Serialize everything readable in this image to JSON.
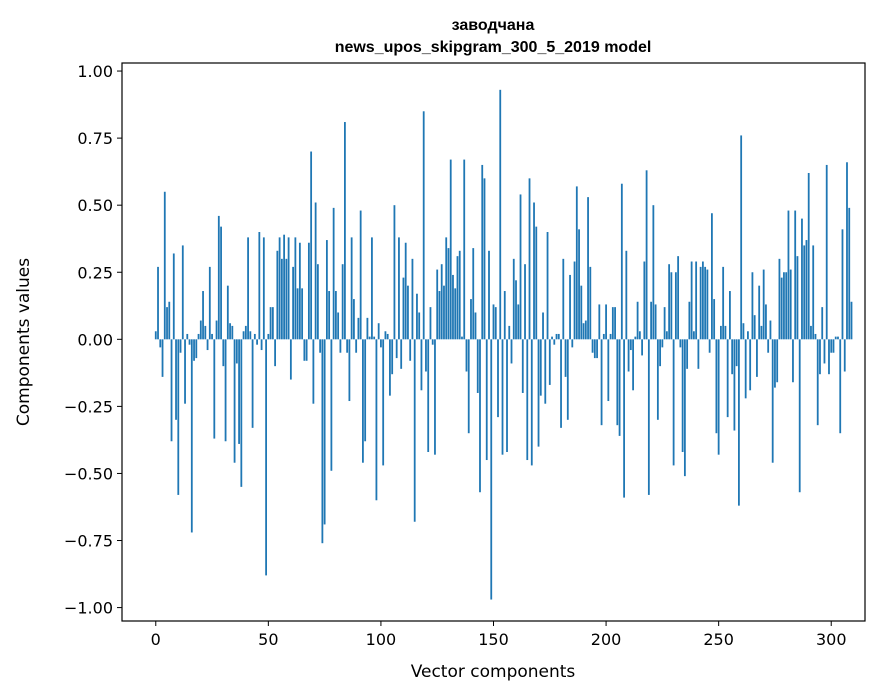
{
  "chart_data": {
    "type": "bar",
    "title_lines": [
      "заводчана",
      "news_upos_skipgram_300_5_2019 model"
    ],
    "xlabel": "Vector components",
    "ylabel": "Components values",
    "xlim": [
      -15,
      315
    ],
    "ylim": [
      -1.05,
      1.03
    ],
    "xticks": [
      0,
      50,
      100,
      150,
      200,
      250,
      300
    ],
    "yticks": [
      1.0,
      0.75,
      0.5,
      0.25,
      0.0,
      -0.25,
      -0.5,
      -0.75,
      -1.0
    ],
    "ytick_labels": [
      "1.00",
      "0.75",
      "0.50",
      "0.25",
      "0.00",
      "−0.25",
      "−0.50",
      "−0.75",
      "−1.00"
    ],
    "bar_color": "#1f77b4",
    "grid": false,
    "values": [
      0.03,
      0.27,
      -0.03,
      -0.14,
      0.55,
      0.12,
      0.14,
      -0.38,
      0.32,
      -0.3,
      -0.58,
      -0.05,
      0.35,
      -0.24,
      0.02,
      -0.02,
      -0.72,
      -0.08,
      -0.07,
      0.02,
      0.07,
      0.18,
      0.05,
      -0.04,
      0.27,
      0.02,
      -0.37,
      0.07,
      0.46,
      0.42,
      -0.1,
      -0.38,
      0.2,
      0.06,
      0.05,
      -0.46,
      -0.09,
      -0.39,
      -0.55,
      0.03,
      0.05,
      0.38,
      0.03,
      -0.33,
      0.02,
      -0.02,
      0.4,
      -0.04,
      0.38,
      -0.88,
      0.02,
      0.12,
      0.12,
      -0.1,
      0.33,
      0.38,
      0.3,
      0.39,
      0.3,
      0.38,
      -0.15,
      0.27,
      0.38,
      0.19,
      0.36,
      0.19,
      -0.08,
      -0.08,
      0.36,
      0.7,
      -0.24,
      0.51,
      0.28,
      -0.05,
      -0.76,
      -0.69,
      0.37,
      0.18,
      -0.49,
      0.49,
      0.18,
      0.1,
      -0.05,
      0.28,
      0.81,
      -0.05,
      -0.23,
      0.38,
      0.15,
      -0.05,
      0.08,
      0.48,
      -0.46,
      -0.38,
      0.08,
      0.01,
      0.38,
      0.01,
      -0.6,
      0.06,
      -0.03,
      -0.47,
      0.03,
      0.02,
      -0.21,
      -0.13,
      0.5,
      -0.07,
      0.38,
      -0.11,
      0.23,
      0.36,
      0.2,
      -0.08,
      0.3,
      -0.68,
      0.17,
      0.1,
      -0.19,
      0.85,
      -0.12,
      -0.42,
      0.12,
      -0.02,
      -0.43,
      0.26,
      0.18,
      0.28,
      0.2,
      0.38,
      0.34,
      0.67,
      0.24,
      0.19,
      0.31,
      0.33,
      0.01,
      0.67,
      -0.12,
      -0.35,
      0.15,
      0.34,
      0.1,
      -0.2,
      -0.57,
      0.65,
      0.6,
      -0.45,
      0.33,
      -0.97,
      0.13,
      0.12,
      -0.29,
      0.93,
      -0.43,
      0.18,
      -0.42,
      0.05,
      -0.09,
      0.3,
      0.22,
      0.13,
      0.54,
      -0.2,
      0.28,
      -0.45,
      0.6,
      -0.47,
      0.51,
      0.42,
      -0.4,
      -0.21,
      0.1,
      -0.24,
      0.4,
      -0.17,
      0.01,
      -0.02,
      0.02,
      0.02,
      -0.33,
      0.3,
      -0.14,
      -0.3,
      0.24,
      -0.03,
      0.29,
      0.57,
      0.41,
      0.2,
      0.06,
      0.07,
      0.53,
      0.27,
      -0.05,
      -0.07,
      -0.07,
      0.13,
      -0.32,
      0.02,
      0.13,
      -0.23,
      0.02,
      0.12,
      0.12,
      -0.32,
      -0.36,
      0.58,
      -0.59,
      0.33,
      -0.12,
      -0.04,
      -0.19,
      0.01,
      0.14,
      0.03,
      -0.06,
      0.29,
      0.63,
      -0.58,
      0.14,
      0.5,
      0.13,
      -0.3,
      -0.1,
      -0.03,
      0.12,
      0.03,
      0.28,
      0.25,
      -0.47,
      0.25,
      0.31,
      -0.03,
      -0.42,
      -0.51,
      -0.11,
      0.14,
      0.29,
      0.03,
      0.29,
      -0.11,
      0.27,
      0.29,
      0.27,
      0.26,
      -0.05,
      0.47,
      0.15,
      -0.35,
      -0.43,
      0.05,
      0.27,
      0.05,
      -0.29,
      0.18,
      -0.13,
      -0.34,
      -0.1,
      -0.62,
      0.76,
      0.06,
      -0.22,
      0.03,
      -0.19,
      0.25,
      0.09,
      -0.14,
      0.2,
      0.05,
      0.26,
      0.13,
      -0.05,
      0.07,
      -0.46,
      -0.18,
      -0.16,
      0.3,
      0.23,
      0.25,
      0.25,
      0.48,
      0.26,
      -0.16,
      0.48,
      0.31,
      -0.57,
      0.45,
      0.35,
      0.37,
      0.62,
      0.05,
      0.35,
      0.02,
      -0.32,
      -0.13,
      0.12,
      -0.09,
      0.65,
      -0.13,
      -0.05,
      -0.05,
      0.01,
      0.01,
      -0.35,
      0.41,
      -0.12,
      0.66,
      0.49,
      0.14
    ]
  }
}
